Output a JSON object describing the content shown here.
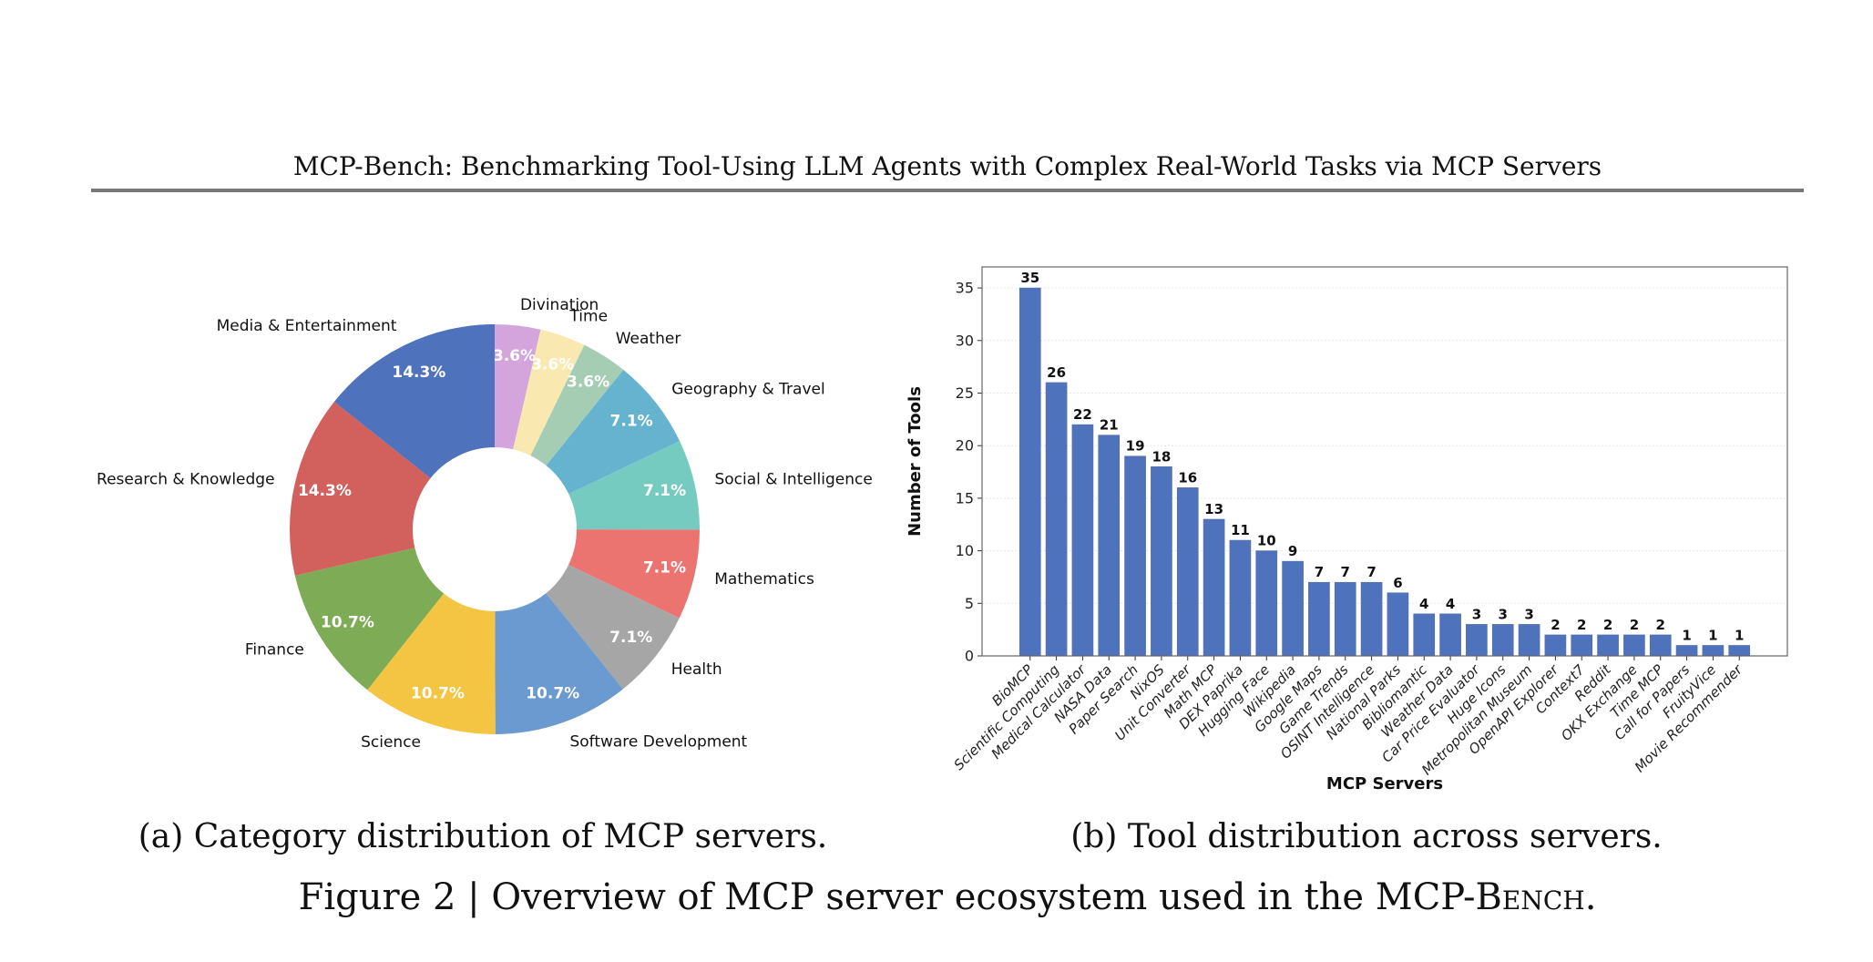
{
  "header": {
    "title": "MCP-Bench: Benchmarking Tool-Using LLM Agents with Complex Real-World Tasks via MCP Servers"
  },
  "captions": {
    "a": "(a) Category distribution of MCP servers.",
    "b": "(b) Tool distribution across servers.",
    "figure_prefix": "Figure 2 | Overview of MCP server ecosystem used in the ",
    "figure_name": "MCP-Bench",
    "figure_suffix": "."
  },
  "chart_data": [
    {
      "type": "pie",
      "donut": true,
      "start": "top, clockwise",
      "categories": [
        "Divination",
        "Time",
        "Weather",
        "Geography & Travel",
        "Social & Intelligence",
        "Mathematics",
        "Health",
        "Software Development",
        "Science",
        "Finance",
        "Research & Knowledge",
        "Media & Entertainment"
      ],
      "values": [
        3.6,
        3.6,
        3.6,
        7.1,
        7.1,
        7.1,
        7.1,
        10.7,
        10.7,
        10.7,
        14.3,
        14.3
      ],
      "labels": [
        "3.6%",
        "3.6%",
        "3.6%",
        "7.1%",
        "7.1%",
        "7.1%",
        "7.1%",
        "10.7%",
        "10.7%",
        "10.7%",
        "14.3%",
        "14.3%"
      ],
      "colors": [
        "#d4a5dc",
        "#f9e9b0",
        "#a4cdb4",
        "#66b3d0",
        "#76cbc0",
        "#ec7470",
        "#a6a6a6",
        "#6a9ad0",
        "#f4c542",
        "#7eab55",
        "#d2605c",
        "#4f72bd"
      ]
    },
    {
      "type": "bar",
      "xlabel": "MCP Servers",
      "ylabel": "Number of Tools",
      "ylim": [
        0,
        37
      ],
      "yticks": [
        0,
        5,
        10,
        15,
        20,
        25,
        30,
        35
      ],
      "grid": "horizontal",
      "color": "#4f72bd",
      "categories": [
        "BioMCP",
        "Scientific Computing",
        "Medical Calculator",
        "NASA Data",
        "Paper Search",
        "NixOS",
        "Unit Converter",
        "Math MCP",
        "DEX Paprika",
        "Hugging Face",
        "Wikipedia",
        "Google Maps",
        "Game Trends",
        "OSINT Intelligence",
        "National Parks",
        "Bibliomantic",
        "Weather Data",
        "Car Price Evaluator",
        "Huge Icons",
        "Metropolitan Museum",
        "OpenAPI Explorer",
        "Context7",
        "Reddit",
        "OKX Exchange",
        "Time MCP",
        "Call for Papers",
        "FruityVice",
        "Movie Recommender"
      ],
      "values": [
        35,
        26,
        22,
        21,
        19,
        18,
        16,
        13,
        11,
        10,
        9,
        7,
        7,
        7,
        6,
        4,
        4,
        3,
        3,
        3,
        2,
        2,
        2,
        2,
        2,
        1,
        1,
        1
      ]
    }
  ]
}
